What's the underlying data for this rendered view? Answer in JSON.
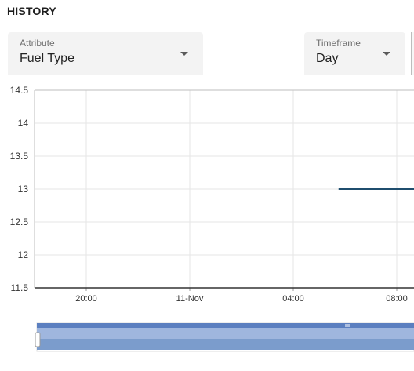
{
  "header": {
    "title": "HISTORY"
  },
  "filters": {
    "attribute": {
      "label": "Attribute",
      "value": "Fuel Type"
    },
    "timeframe": {
      "label": "Timeframe",
      "value": "Day"
    }
  },
  "chart_data": {
    "type": "line",
    "title": "",
    "xlabel": "",
    "ylabel": "",
    "y_ticks": [
      "14.5",
      "14",
      "13.5",
      "13",
      "12.5",
      "12",
      "11.5"
    ],
    "x_ticks": [
      "20:00",
      "11-Nov",
      "04:00",
      "08:00"
    ],
    "ylim": [
      11.5,
      14.5
    ],
    "grid": true,
    "series": [
      {
        "points": [
          {
            "x": "05:45",
            "y": 13
          },
          {
            "x": "09:00",
            "y": 13
          }
        ]
      }
    ],
    "colors": {
      "line": "#1f4e6e",
      "grid": "#e6e6e6",
      "axis": "#333333",
      "navigator": "#7b9ccc"
    }
  }
}
